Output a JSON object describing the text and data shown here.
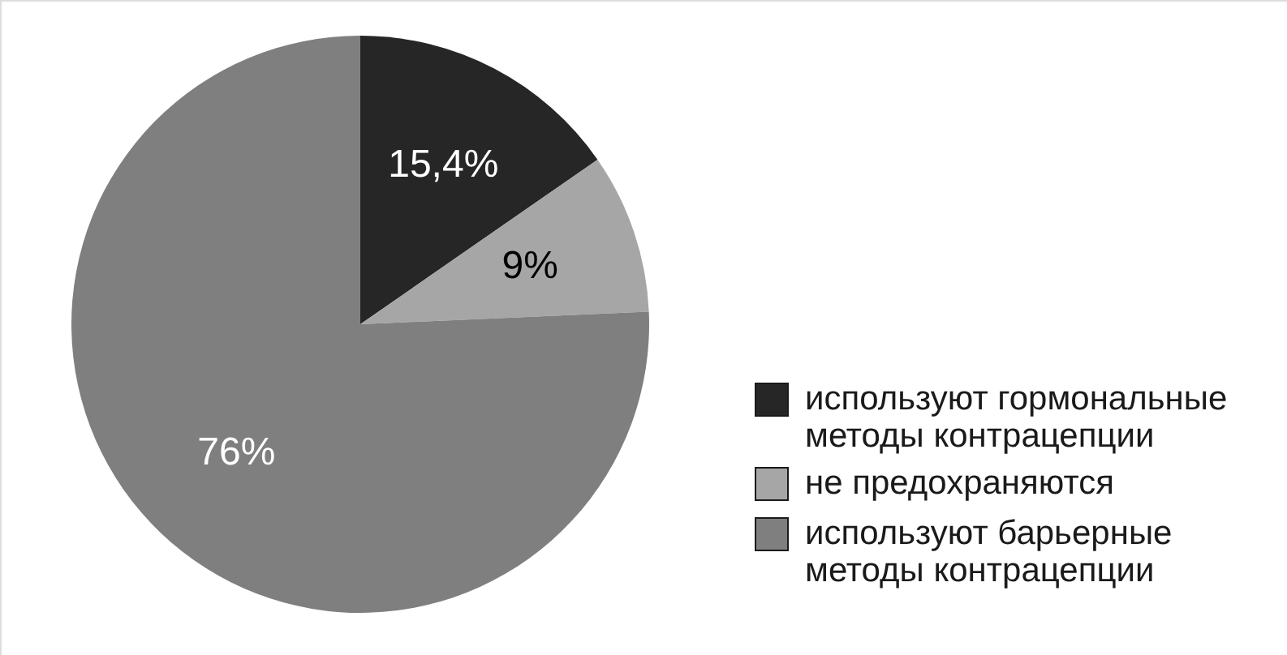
{
  "chart_data": {
    "type": "pie",
    "categories": [
      "используют гормональные методы контрацепции",
      "не предохраняются",
      "используют барьерные методы контрацепции"
    ],
    "values": [
      15.4,
      9,
      76
    ],
    "colors": [
      "#262626",
      "#a6a6a6",
      "#7f7f7f"
    ],
    "value_labels": [
      "15,4%",
      "9%",
      "76%"
    ],
    "legend": "bottom right"
  }
}
